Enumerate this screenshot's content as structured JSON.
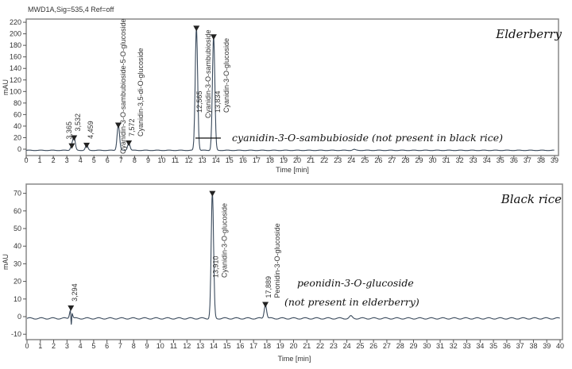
{
  "chart_data": [
    {
      "type": "line",
      "header": "MWD1A,Sig=535,4  Ref=off",
      "title": "Elderberry",
      "xlabel": "Time [min]",
      "ylabel": "mAU",
      "xlim": [
        0,
        39
      ],
      "ylim": [
        -10,
        225
      ],
      "xticks": [
        0,
        1,
        2,
        3,
        4,
        5,
        6,
        7,
        8,
        9,
        10,
        11,
        12,
        13,
        14,
        15,
        16,
        17,
        18,
        19,
        20,
        21,
        22,
        23,
        24,
        25,
        26,
        27,
        28,
        29,
        30,
        31,
        32,
        33,
        34,
        35,
        36,
        37,
        38,
        39
      ],
      "yticks": [
        0,
        20,
        40,
        60,
        80,
        100,
        120,
        140,
        160,
        180,
        200,
        220
      ],
      "baseline": -2,
      "peaks": [
        {
          "rt": 3.365,
          "height": 6,
          "rt_label": "3,365",
          "name": ""
        },
        {
          "rt": 3.532,
          "height": 20,
          "rt_label": "3,532",
          "name": ""
        },
        {
          "rt": 4.459,
          "height": 7,
          "rt_label": "4,459",
          "name": ""
        },
        {
          "rt": 6.8,
          "height": 42,
          "rt_label": "",
          "name": "Cyanidin-3-O-sambubioside-5-O-glucoside"
        },
        {
          "rt": 7.572,
          "height": 11,
          "rt_label": "7,572",
          "name": "Cyanidin-3,5-di-O-glucoside"
        },
        {
          "rt": 12.565,
          "height": 210,
          "rt_label": "12,565",
          "name": "Cyanidin-3-O-sambubioside"
        },
        {
          "rt": 13.834,
          "height": 195,
          "rt_label": "13,834",
          "name": "Cyanidin-3-O-glucoside"
        }
      ],
      "annotation": "cyanidin-3-O-sambubioside (not present in black rice)"
    },
    {
      "type": "line",
      "title": "Black rice",
      "xlabel": "Time [min]",
      "ylabel": "mAU",
      "xlim": [
        0,
        40
      ],
      "ylim": [
        -12,
        72
      ],
      "xticks": [
        0,
        1,
        2,
        3,
        4,
        5,
        6,
        7,
        8,
        9,
        10,
        11,
        12,
        13,
        14,
        15,
        16,
        17,
        18,
        19,
        20,
        21,
        22,
        23,
        24,
        25,
        26,
        27,
        28,
        29,
        30,
        31,
        32,
        33,
        34,
        35,
        36,
        37,
        38,
        39,
        40
      ],
      "yticks": [
        -10,
        0,
        10,
        20,
        30,
        40,
        50,
        60,
        70
      ],
      "baseline": -1,
      "peaks": [
        {
          "rt": 3.294,
          "height": 5,
          "rt_label": "3,294",
          "name": ""
        },
        {
          "rt": 13.91,
          "height": 70,
          "rt_label": "13,910",
          "name": "Cyanidin-3-O-glucoside"
        },
        {
          "rt": 17.889,
          "height": 7,
          "rt_label": "17,889",
          "name": "Peonidin-3-O-glucoside"
        }
      ],
      "annotation": [
        "peonidin-3-O-glucoside",
        "(not present in elderberry)"
      ]
    }
  ],
  "colors": {
    "trace": "#3a4a5c",
    "axis": "#555555",
    "frame": "#888888"
  }
}
